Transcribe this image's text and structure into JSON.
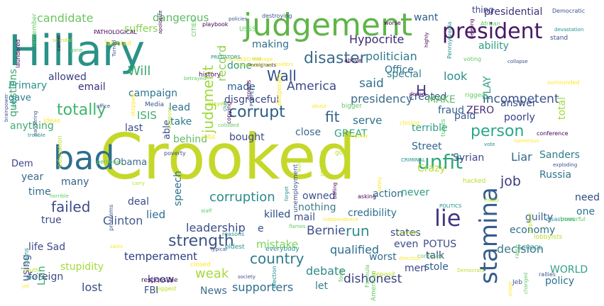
{
  "palette": [
    "#440154",
    "#3b528b",
    "#21918c",
    "#5ec962",
    "#b8de29",
    "#fde725"
  ],
  "words": [
    {
      "text": "Crooked",
      "color": "#c5d82a"
    },
    {
      "text": "Hillary",
      "color": "#2a9287"
    },
    {
      "text": "bad",
      "color": "#2d6e8e"
    },
    {
      "text": "judgement",
      "color": "#5fb548"
    },
    {
      "text": "president",
      "color": "#471964"
    },
    {
      "text": "unfit",
      "color": "#30a779"
    },
    {
      "text": "stamina",
      "color": "#355c8b"
    },
    {
      "text": "lie",
      "color": "#433880"
    },
    {
      "text": "corrupt",
      "color": "#2b5d86"
    },
    {
      "text": "disaster",
      "color": "#3e6a8a"
    },
    {
      "text": "person",
      "color": "#2aa788"
    },
    {
      "text": "totally",
      "color": "#3fb56e"
    },
    {
      "text": "failed",
      "color": "#3f4a86"
    },
    {
      "text": "strength",
      "color": "#3c5584"
    },
    {
      "text": "country",
      "color": "#2d7b8d"
    },
    {
      "text": "corruption",
      "color": "#2a8a8a"
    },
    {
      "text": "judgment",
      "color": "#9ed739"
    },
    {
      "text": "Will",
      "color": "#3bab6b"
    },
    {
      "text": "Wall",
      "color": "#2c4f86"
    },
    {
      "text": "record",
      "color": "#8ad34a"
    },
    {
      "text": "incompetent",
      "color": "#3b528b"
    },
    {
      "text": "fit",
      "color": "#34608d"
    },
    {
      "text": "dishonest",
      "color": "#3d3f82"
    },
    {
      "text": "job",
      "color": "#3b3b80"
    },
    {
      "text": "presidency",
      "color": "#3b6c8a"
    },
    {
      "text": "Hypocrite",
      "color": "#3b2a74"
    },
    {
      "text": "America",
      "color": "#3d4b88"
    },
    {
      "text": "said",
      "color": "#2f6f8d"
    },
    {
      "text": "H",
      "color": "#3f3d86"
    },
    {
      "text": "look",
      "color": "#2f8d8a"
    },
    {
      "text": "politician",
      "color": "#2f7b8e"
    },
    {
      "text": "Liar",
      "color": "#2f6a8d"
    },
    {
      "text": "Bernie",
      "color": "#3e4f89"
    },
    {
      "text": "run",
      "color": "#2e8c8a"
    },
    {
      "text": "leadership",
      "color": "#3a4d8a"
    },
    {
      "text": "Clinton",
      "color": "#3f5a8c"
    },
    {
      "text": "weak",
      "color": "#a9d83c"
    },
    {
      "text": "debate",
      "color": "#2e8a8c"
    },
    {
      "text": "temperament",
      "color": "#2b3d80"
    },
    {
      "text": "mistake",
      "color": "#7cd259"
    },
    {
      "text": "qualified",
      "color": "#2d6c8e"
    },
    {
      "text": "decision",
      "color": "#3e7a8b"
    },
    {
      "text": "supporters",
      "color": "#2e6f8d"
    },
    {
      "text": "lost",
      "color": "#3a4c87"
    },
    {
      "text": "Lyin",
      "color": "#3aa46e"
    },
    {
      "text": "candidate",
      "color": "#6cc45f"
    },
    {
      "text": "dangerous",
      "color": "#5ab862"
    },
    {
      "text": "suffers",
      "color": "#87d34c"
    },
    {
      "text": "questions",
      "color": "#3aa56d"
    },
    {
      "text": "want",
      "color": "#2d5e8d"
    },
    {
      "text": "thing",
      "color": "#3a4486"
    },
    {
      "text": "presidential",
      "color": "#3f2f78"
    },
    {
      "text": "ability",
      "color": "#2c9c84"
    },
    {
      "text": "making",
      "color": "#2d6e8e"
    },
    {
      "text": "Office",
      "color": "#2b6d8e"
    },
    {
      "text": "done",
      "color": "#2c9a86"
    },
    {
      "text": "allowed",
      "color": "#3a3d82"
    },
    {
      "text": "Primary",
      "color": "#2a9288"
    },
    {
      "text": "email",
      "color": "#3c2d78"
    },
    {
      "text": "gave",
      "color": "#2c7c8e"
    },
    {
      "text": "campaign",
      "color": "#2c738e"
    },
    {
      "text": "ISIS",
      "color": "#3fad6b"
    },
    {
      "text": "made",
      "color": "#2a5d8b"
    },
    {
      "text": "disgraceful",
      "color": "#3c4984"
    },
    {
      "text": "special",
      "color": "#2f808e"
    },
    {
      "text": "created",
      "color": "#3c5388"
    },
    {
      "text": "MAKE",
      "color": "#57be64"
    },
    {
      "text": "PLAY",
      "color": "#2d9e86"
    },
    {
      "text": "answer",
      "color": "#3a4c87"
    },
    {
      "text": "poorly",
      "color": "#36408a"
    },
    {
      "text": "paid",
      "color": "#3a5a8b"
    },
    {
      "text": "ZERO",
      "color": "#432d76"
    },
    {
      "text": "fraud",
      "color": "#33608a"
    },
    {
      "text": "serve",
      "color": "#2c708e"
    },
    {
      "text": "GREAT",
      "color": "#2ca383"
    },
    {
      "text": "terrible",
      "color": "#2e9e86"
    },
    {
      "text": "Sanders",
      "color": "#2c7d8e"
    },
    {
      "text": "total",
      "color": "#9fd93a"
    },
    {
      "text": "anything",
      "color": "#3fab70"
    },
    {
      "text": "last",
      "color": "#3d4b88"
    },
    {
      "text": "take",
      "color": "#2a7b8e"
    },
    {
      "text": "lead",
      "color": "#2e6f8e"
    },
    {
      "text": "behind",
      "color": "#5fbc65"
    },
    {
      "text": "bought",
      "color": "#3e4986"
    },
    {
      "text": "close",
      "color": "#3a6a8b"
    },
    {
      "text": "Street",
      "color": "#30658c"
    },
    {
      "text": "Syrian",
      "color": "#404886"
    },
    {
      "text": "Dem",
      "color": "#3a4486"
    },
    {
      "text": "year",
      "color": "#3a6a8b"
    },
    {
      "text": "Obama",
      "color": "#3a6a8b"
    },
    {
      "text": "many",
      "color": "#33608c"
    },
    {
      "text": "Crazy",
      "color": "#b5dd2b"
    },
    {
      "text": "time",
      "color": "#2e6c8e"
    },
    {
      "text": "speech",
      "color": "#2e6f8d"
    },
    {
      "text": "Russia",
      "color": "#30738e"
    },
    {
      "text": "never",
      "color": "#2f9c86"
    },
    {
      "text": "action",
      "color": "#2e6f8e"
    },
    {
      "text": "need",
      "color": "#2e4a86"
    },
    {
      "text": "one",
      "color": "#2e718e"
    },
    {
      "text": "deal",
      "color": "#3a4c87"
    },
    {
      "text": "owned",
      "color": "#39508a"
    },
    {
      "text": "nothing",
      "color": "#3f7a8c"
    },
    {
      "text": "lied",
      "color": "#2d6b8e"
    },
    {
      "text": "killed",
      "color": "#2a4b86"
    },
    {
      "text": "mail",
      "color": "#3a4c87"
    },
    {
      "text": "credibility",
      "color": "#2d708e"
    },
    {
      "text": "guilty",
      "color": "#3a5f8b"
    },
    {
      "text": "economy",
      "color": "#2d6e8e"
    },
    {
      "text": "true",
      "color": "#3f4a86"
    },
    {
      "text": "states",
      "color": "#3a4c87"
    },
    {
      "text": "even",
      "color": "#3a4c87"
    },
    {
      "text": "talk",
      "color": "#3a4386"
    },
    {
      "text": "worst",
      "color": "#2f6d8e"
    },
    {
      "text": "stole",
      "color": "#2b5c8a"
    },
    {
      "text": "men",
      "color": "#3a4486"
    },
    {
      "text": "policy",
      "color": "#2c728e"
    },
    {
      "text": "WORLD",
      "color": "#2e9e86"
    },
    {
      "text": "life Sad",
      "color": "#3e4986"
    },
    {
      "text": "using",
      "color": "#3e4986"
    },
    {
      "text": "stupidity",
      "color": "#a4d93c"
    },
    {
      "text": "foreign",
      "color": "#3c4c87"
    },
    {
      "text": "know",
      "color": "#3a4c87"
    },
    {
      "text": "FBI",
      "color": "#3a4c87"
    },
    {
      "text": "News",
      "color": "#3e6e8b"
    },
    {
      "text": "let",
      "color": "#2e7c8e"
    },
    {
      "text": "e",
      "color": "#3a4c87"
    },
    {
      "text": "POTUS",
      "color": "#3f4a88"
    },
    {
      "text": "able",
      "color": "#3a4c87"
    }
  ],
  "small_words": [
    "ideas",
    "forget",
    "CROOKED average",
    "donors",
    "sales",
    "staff",
    "policies",
    "fools",
    "reasons",
    "problems",
    "Democrats",
    "goal",
    "office",
    "Jeb",
    "Jess",
    "USSS",
    "stand",
    "voting",
    "jail",
    "education",
    "loyal",
    "scandal",
    "playbook",
    "closing",
    "safety",
    "deleting",
    "exploding",
    "vote",
    "illegality",
    "SCHOOL",
    "confused",
    "tubes",
    "bigger",
    "oldest",
    "society",
    "gone",
    "numerous",
    "above",
    "abuse",
    "Typical",
    "immigrants",
    "Democratic",
    "African",
    "devastation",
    "desperate",
    "rest",
    "closed",
    "PATHOLOGICAL",
    "stopped",
    "independence",
    "horrible",
    "poverty",
    "POLITICS",
    "CITIES",
    "direction",
    "gains",
    "brainpower",
    "reckless",
    "crowds",
    "personal",
    "conference",
    "remember",
    "raise",
    "lobbyists",
    "surrounded",
    "betrayed",
    "asking",
    "apologize",
    "election",
    "career",
    "pandering",
    "everybody",
    "CrookedHillary",
    "colluded",
    "PREDATORS",
    "worse",
    "history",
    "biggest",
    "disastrous",
    "youth",
    "Media",
    "played",
    "word",
    "copying",
    "rallies",
    "collapse",
    "Pennsylvania",
    "hacked",
    "responsible",
    "unemployment",
    "trouble",
    "Formula",
    "American",
    "CRIMINAL",
    "Talented",
    "solutions",
    "sniper",
    "airplane",
    "flames",
    "CHANGE",
    "powerful",
    "clue",
    "Turned",
    "PUPPET",
    "laundered",
    "destroying",
    "jobs",
    "insiders",
    "bailing",
    "rigged",
    "mess",
    "deposit",
    "changed",
    "carry",
    "highly"
  ]
}
